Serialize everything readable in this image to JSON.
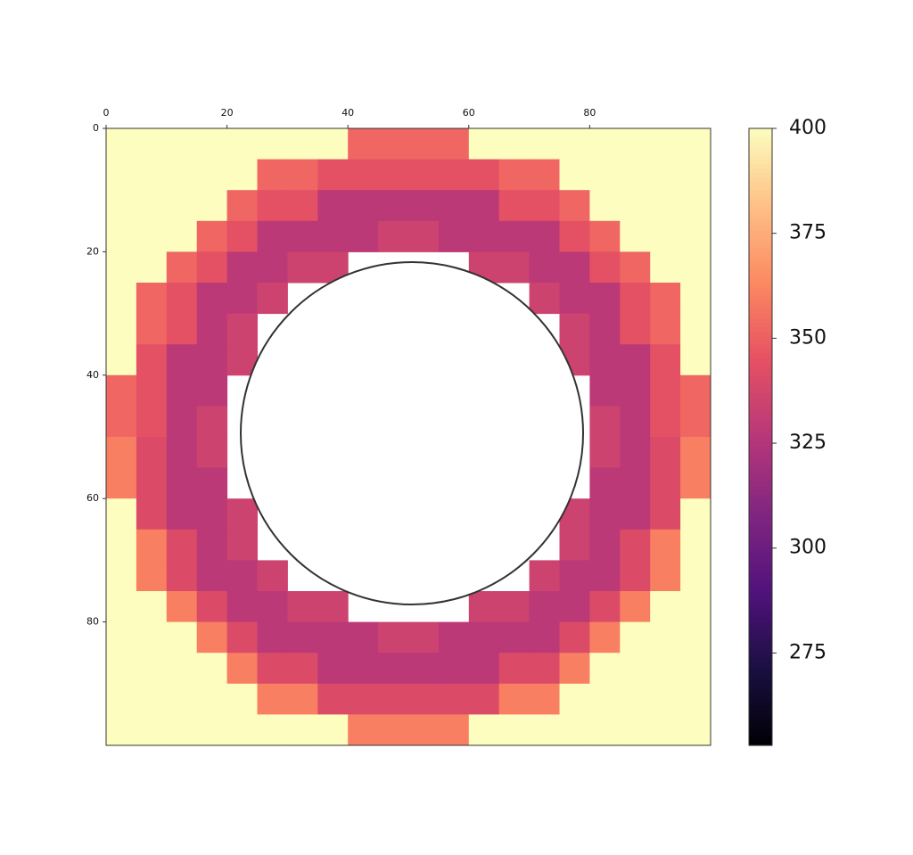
{
  "chart_data": {
    "type": "heatmap",
    "colormap": "magma",
    "clim": [
      253,
      400
    ],
    "xlim": [
      0,
      100
    ],
    "ylim": [
      0,
      100
    ],
    "y_inverted": true,
    "x_axis_position": "top",
    "xticks": [
      0,
      20,
      40,
      60,
      80
    ],
    "yticks": [
      0,
      20,
      40,
      60,
      80
    ],
    "colorbar_ticks": [
      275,
      300,
      325,
      350,
      375,
      400
    ],
    "z": [
      [
        400,
        400,
        400,
        400,
        400,
        400,
        400,
        400,
        352,
        352,
        352,
        352,
        400,
        400,
        400,
        400,
        400,
        400,
        400,
        400
      ],
      [
        400,
        400,
        400,
        400,
        400,
        352,
        352,
        345,
        345,
        345,
        345,
        345,
        345,
        352,
        352,
        400,
        400,
        400,
        400,
        400
      ],
      [
        400,
        400,
        400,
        400,
        352,
        345,
        345,
        328,
        328,
        328,
        328,
        328,
        328,
        345,
        345,
        352,
        400,
        400,
        400,
        400
      ],
      [
        400,
        400,
        400,
        352,
        345,
        328,
        328,
        328,
        328,
        335,
        335,
        328,
        328,
        328,
        328,
        345,
        352,
        400,
        400,
        400
      ],
      [
        400,
        400,
        352,
        345,
        328,
        328,
        335,
        335,
        null,
        null,
        null,
        null,
        335,
        335,
        328,
        328,
        345,
        352,
        400,
        400
      ],
      [
        400,
        352,
        345,
        328,
        328,
        335,
        null,
        null,
        null,
        null,
        null,
        null,
        null,
        null,
        335,
        328,
        328,
        345,
        352,
        400
      ],
      [
        400,
        352,
        345,
        328,
        335,
        null,
        null,
        null,
        null,
        null,
        null,
        null,
        null,
        null,
        null,
        335,
        328,
        345,
        352,
        400
      ],
      [
        400,
        345,
        328,
        328,
        335,
        null,
        null,
        null,
        null,
        null,
        null,
        null,
        null,
        null,
        null,
        335,
        328,
        328,
        345,
        400
      ],
      [
        352,
        345,
        328,
        328,
        null,
        null,
        null,
        null,
        null,
        null,
        null,
        null,
        null,
        null,
        null,
        null,
        328,
        328,
        345,
        352
      ],
      [
        352,
        345,
        328,
        335,
        null,
        null,
        null,
        null,
        null,
        null,
        null,
        null,
        null,
        null,
        null,
        null,
        335,
        328,
        345,
        352
      ],
      [
        360,
        341,
        328,
        335,
        null,
        null,
        null,
        null,
        null,
        null,
        null,
        null,
        null,
        null,
        null,
        null,
        335,
        328,
        341,
        360
      ],
      [
        360,
        341,
        328,
        328,
        null,
        null,
        null,
        null,
        null,
        null,
        null,
        null,
        null,
        null,
        null,
        null,
        328,
        328,
        341,
        360
      ],
      [
        400,
        341,
        328,
        328,
        335,
        null,
        null,
        null,
        null,
        null,
        null,
        null,
        null,
        null,
        null,
        335,
        328,
        328,
        341,
        400
      ],
      [
        400,
        360,
        341,
        328,
        335,
        null,
        null,
        null,
        null,
        null,
        null,
        null,
        null,
        null,
        null,
        335,
        328,
        341,
        360,
        400
      ],
      [
        400,
        360,
        341,
        328,
        328,
        335,
        null,
        null,
        null,
        null,
        null,
        null,
        null,
        null,
        335,
        328,
        328,
        341,
        360,
        400
      ],
      [
        400,
        400,
        360,
        341,
        328,
        328,
        335,
        335,
        null,
        null,
        null,
        null,
        335,
        335,
        328,
        328,
        341,
        360,
        400,
        400
      ],
      [
        400,
        400,
        400,
        360,
        341,
        328,
        328,
        328,
        328,
        335,
        335,
        328,
        328,
        328,
        328,
        341,
        360,
        400,
        400,
        400
      ],
      [
        400,
        400,
        400,
        400,
        360,
        341,
        341,
        328,
        328,
        328,
        328,
        328,
        328,
        341,
        341,
        360,
        400,
        400,
        400,
        400
      ],
      [
        400,
        400,
        400,
        400,
        400,
        360,
        360,
        341,
        341,
        341,
        341,
        341,
        341,
        360,
        360,
        400,
        400,
        400,
        400,
        400
      ],
      [
        400,
        400,
        400,
        400,
        400,
        400,
        400,
        400,
        360,
        360,
        360,
        360,
        400,
        400,
        400,
        400,
        400,
        400,
        400,
        400
      ]
    ]
  }
}
